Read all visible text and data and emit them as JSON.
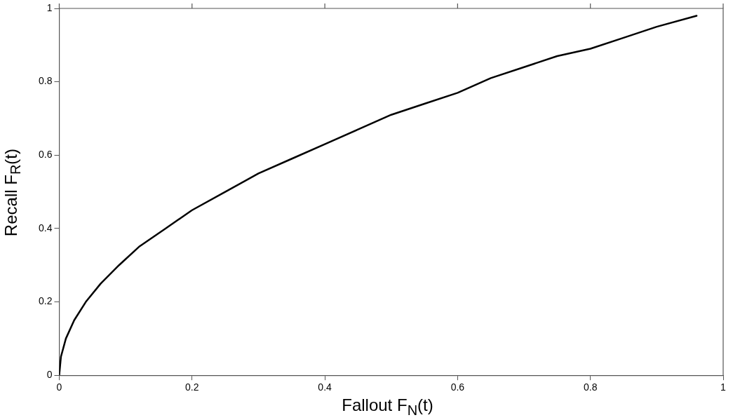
{
  "chart_data": {
    "type": "line",
    "xlabel": "Fallout  F$_{N}$(t)",
    "ylabel": "Recall  F$_{R}$(t)",
    "x": [
      0,
      0.0025,
      0.01,
      0.0225,
      0.04,
      0.0625,
      0.09,
      0.12,
      0.16,
      0.2,
      0.25,
      0.3,
      0.35,
      0.4,
      0.45,
      0.5,
      0.55,
      0.6,
      0.65,
      0.7,
      0.75,
      0.8,
      0.85,
      0.9,
      0.96
    ],
    "series": [
      {
        "color": "#000000",
        "values": [
          0,
          0.05,
          0.1,
          0.15,
          0.2,
          0.25,
          0.3,
          0.35,
          0.4,
          0.45,
          0.5,
          0.55,
          0.59,
          0.63,
          0.67,
          0.71,
          0.74,
          0.77,
          0.81,
          0.84,
          0.87,
          0.89,
          0.92,
          0.95,
          0.98
        ]
      }
    ],
    "xlim": [
      0,
      1
    ],
    "xticks": [
      0,
      0.2,
      0.4,
      0.6,
      0.8,
      1
    ],
    "ylim": [
      0,
      1
    ],
    "yticks": [
      0,
      0.2,
      0.4,
      0.6,
      0.8,
      1
    ],
    "grid": false,
    "legend": false,
    "marker": "none",
    "line_style": "solid"
  }
}
